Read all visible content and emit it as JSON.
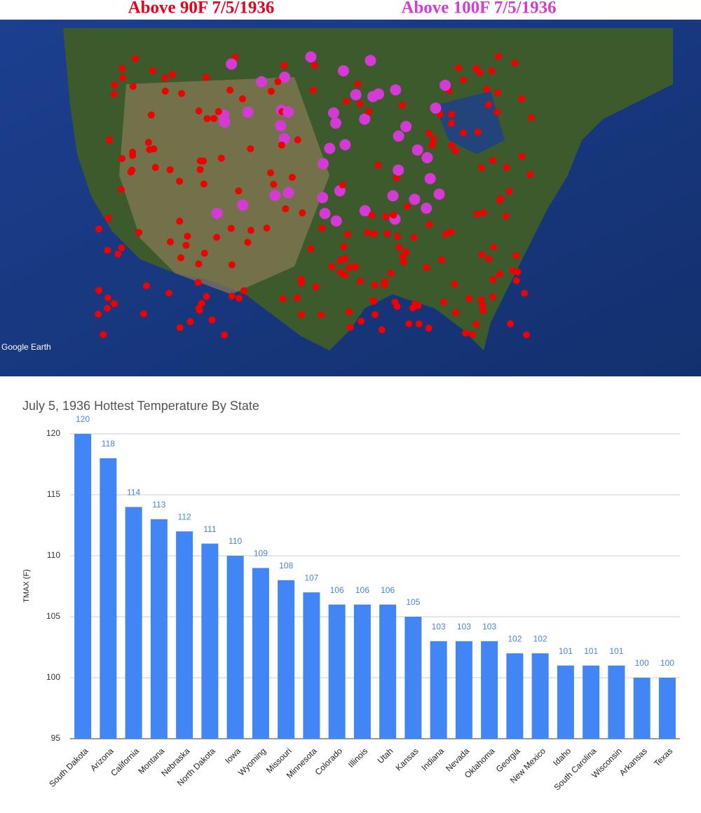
{
  "map": {
    "titles": [
      "Above 90F 7/5/1936",
      "Above 100F 7/5/1936"
    ],
    "credit": "Google Earth"
  },
  "chart_data": {
    "type": "bar",
    "title": "July 5, 1936 Hottest Temperature By State",
    "y_label": "TMAX (F)",
    "categories": [
      "South Dakota",
      "Arizona",
      "California",
      "Montana",
      "Nebraska",
      "North Dakota",
      "Iowa",
      "Wyoming",
      "Missouri",
      "Minnesota",
      "Colorado",
      "Illinois",
      "Utah",
      "Kansas",
      "Indiana",
      "Nevada",
      "Oklahoma",
      "Georgia",
      "New Mexico",
      "Idaho",
      "South Carolina",
      "Wisconsin",
      "Arkansas",
      "Texas"
    ],
    "values": [
      120,
      118,
      114,
      113,
      112,
      111,
      110,
      109,
      108,
      107,
      106,
      106,
      106,
      105,
      103,
      103,
      103,
      102,
      102,
      101,
      101,
      101,
      100,
      100
    ],
    "color": "#4285f4",
    "ylim": [
      95,
      120
    ],
    "yticks": [
      95,
      100,
      105,
      110,
      115,
      120
    ],
    "grid": true
  }
}
